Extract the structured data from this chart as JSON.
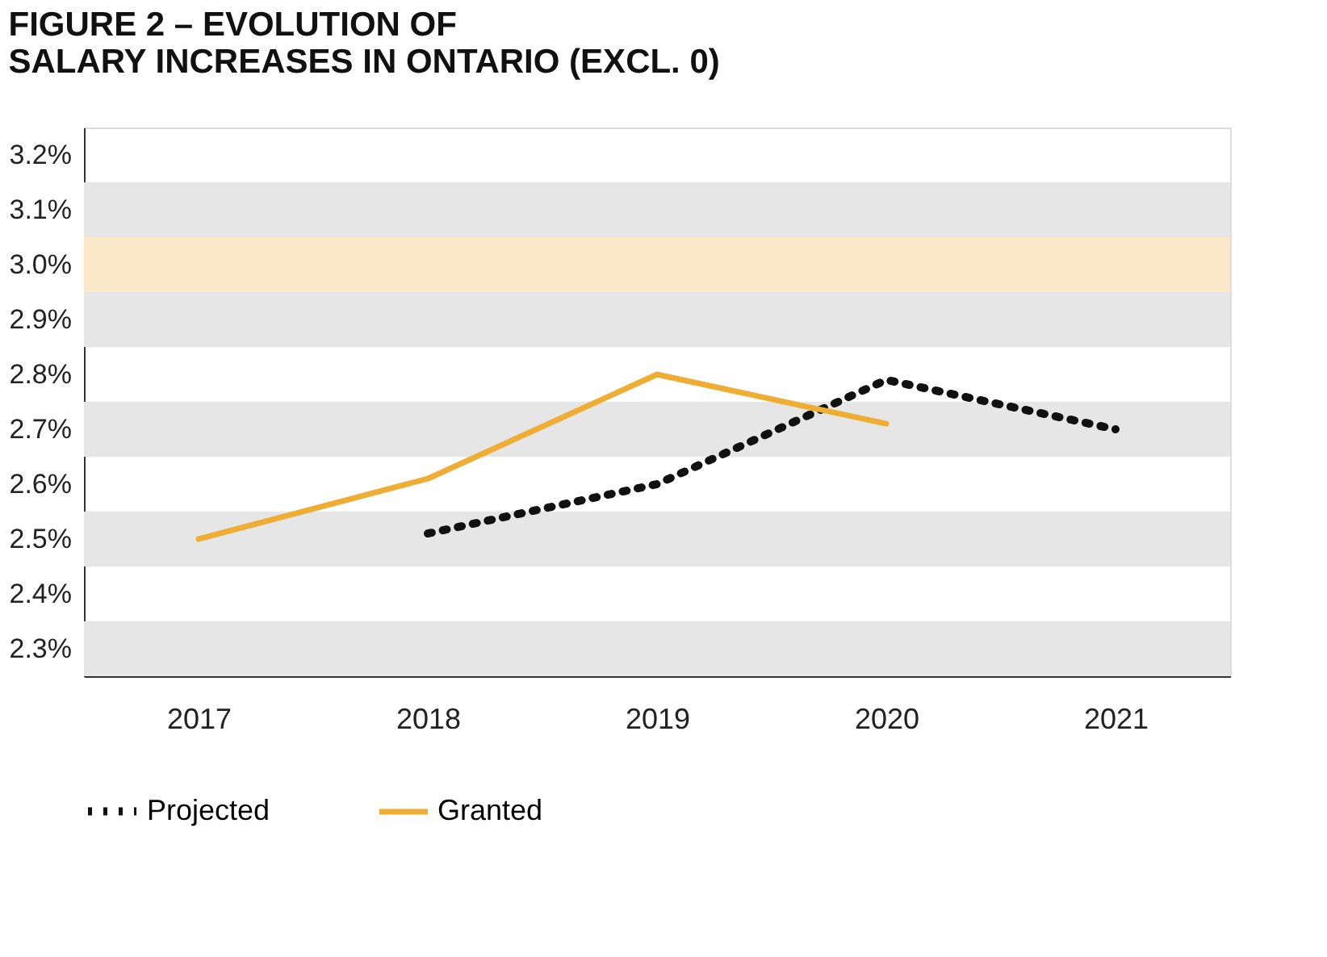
{
  "chart_data": {
    "type": "line",
    "title": "FIGURE 2 – EVOLUTION OF SALARY INCREASES IN ONTARIO (EXCL. 0)",
    "categories": [
      "2017",
      "2018",
      "2019",
      "2020",
      "2021"
    ],
    "series": [
      {
        "name": "Projected",
        "color": "#111111",
        "line_style": "dotted",
        "values": [
          null,
          2.51,
          2.6,
          2.79,
          2.7
        ]
      },
      {
        "name": "Granted",
        "color": "#f0ad34",
        "line_style": "solid",
        "values": [
          2.5,
          2.61,
          2.8,
          2.71,
          null
        ]
      }
    ],
    "ylim": [
      2.25,
      3.25
    ],
    "yticks": [
      {
        "value": 2.3,
        "label": "2.3%"
      },
      {
        "value": 2.4,
        "label": "2.4%"
      },
      {
        "value": 2.5,
        "label": "2.5%"
      },
      {
        "value": 2.6,
        "label": "2.6%"
      },
      {
        "value": 2.7,
        "label": "2.7%"
      },
      {
        "value": 2.8,
        "label": "2.8%"
      },
      {
        "value": 2.9,
        "label": "2.9%"
      },
      {
        "value": 3.0,
        "label": "3.0%"
      },
      {
        "value": 3.1,
        "label": "3.1%"
      },
      {
        "value": 3.2,
        "label": "3.2%"
      }
    ],
    "bands": [
      {
        "axis": "y",
        "from": 3.05,
        "to": 3.15,
        "color": "#e6e6e6"
      },
      {
        "axis": "y",
        "from": 2.95,
        "to": 3.05,
        "color": "#fbe8c8"
      },
      {
        "axis": "y",
        "from": 2.85,
        "to": 2.95,
        "color": "#e6e6e6"
      },
      {
        "axis": "y",
        "from": 2.65,
        "to": 2.75,
        "color": "#e6e6e6"
      },
      {
        "axis": "y",
        "from": 2.45,
        "to": 2.55,
        "color": "#e6e6e6"
      },
      {
        "axis": "y",
        "from": 2.25,
        "to": 2.35,
        "color": "#e6e6e6"
      }
    ],
    "grid": false,
    "legend": "bottom"
  }
}
